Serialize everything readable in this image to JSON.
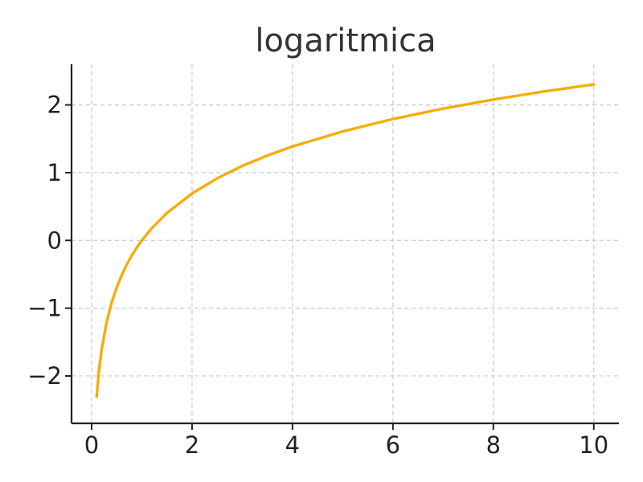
{
  "chart_data": {
    "type": "line",
    "title": "logaritmica",
    "xlabel": "",
    "ylabel": "",
    "xlim": [
      -0.4,
      10.5
    ],
    "ylim": [
      -2.7,
      2.6
    ],
    "xticks": [
      0,
      2,
      4,
      6,
      8,
      10
    ],
    "yticks": [
      -2,
      -1,
      0,
      1,
      2
    ],
    "xtick_labels": [
      "0",
      "2",
      "4",
      "6",
      "8",
      "10"
    ],
    "ytick_labels": [
      "−2",
      "−1",
      "0",
      "1",
      "2"
    ],
    "grid": true,
    "series": [
      {
        "color": "#f5ad0c",
        "x": [
          0.1,
          0.15,
          0.2,
          0.3,
          0.4,
          0.5,
          0.6,
          0.7,
          0.8,
          0.9,
          1,
          1.2,
          1.5,
          2,
          2.5,
          3,
          3.5,
          4,
          5,
          6,
          7,
          8,
          9,
          10
        ],
        "y": [
          -2.303,
          -1.897,
          -1.609,
          -1.204,
          -0.916,
          -0.693,
          -0.511,
          -0.357,
          -0.223,
          -0.105,
          0,
          0.182,
          0.405,
          0.693,
          0.916,
          1.099,
          1.253,
          1.386,
          1.609,
          1.792,
          1.946,
          2.079,
          2.197,
          2.303
        ]
      }
    ]
  }
}
